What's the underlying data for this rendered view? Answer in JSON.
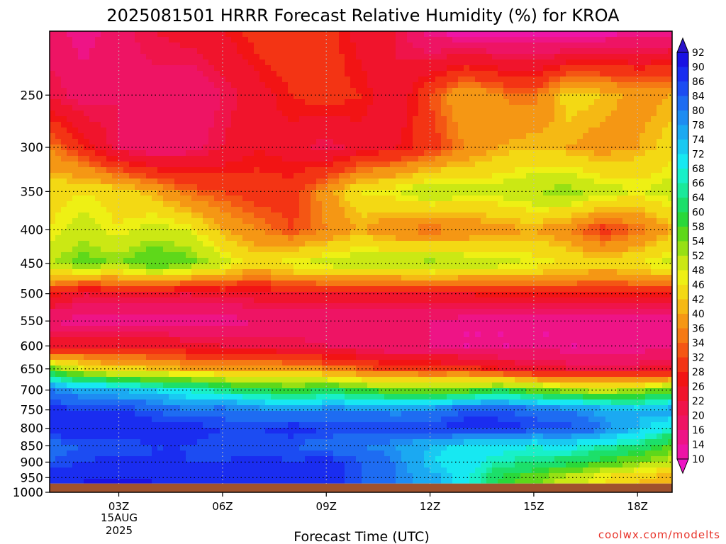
{
  "chart_data": {
    "type": "heatmap",
    "title": "2025081501 HRRR Forecast Relative Humidity (%) for KROA",
    "xlabel": "Forecast Time (UTC)",
    "ylabel": "",
    "credit": "coolwx.com/modelts",
    "x_ticks": [
      "03Z",
      "06Z",
      "09Z",
      "12Z",
      "15Z",
      "18Z"
    ],
    "x_tick_hours": [
      3,
      6,
      9,
      12,
      15,
      18
    ],
    "date_label": [
      "15AUG",
      "2025"
    ],
    "xlim": [
      1,
      19
    ],
    "y_ticks": [
      "250",
      "300",
      "350",
      "400",
      "450",
      "500",
      "550",
      "600",
      "650",
      "700",
      "750",
      "800",
      "850",
      "900",
      "950",
      "1000"
    ],
    "y_tick_values": [
      250,
      300,
      350,
      400,
      450,
      500,
      550,
      600,
      650,
      700,
      750,
      800,
      850,
      900,
      950,
      1000
    ],
    "y_scale": "log-pressure",
    "ylim": [
      200,
      1000
    ],
    "surface_pressure_hpa": 970,
    "grid": true,
    "colorbar_levels": [
      "92",
      "90",
      "86",
      "84",
      "80",
      "78",
      "74",
      "72",
      "68",
      "66",
      "64",
      "60",
      "58",
      "54",
      "52",
      "48",
      "46",
      "42",
      "40",
      "36",
      "34",
      "32",
      "28",
      "26",
      "22",
      "20",
      "16",
      "14",
      "10"
    ],
    "colorbar_colors": [
      "#2a13c9",
      "#1a12e3",
      "#1a2df0",
      "#1c4cf2",
      "#1e6cf2",
      "#1e8cf2",
      "#1ba9f2",
      "#19c9f2",
      "#17e8f2",
      "#18f0c8",
      "#1ae99a",
      "#1cdf6a",
      "#2ad83a",
      "#5ed81a",
      "#97e014",
      "#cbe814",
      "#eef014",
      "#f3d914",
      "#f5b914",
      "#f59714",
      "#f57a14",
      "#f45614",
      "#f33414",
      "#f21414",
      "#f0142c",
      "#ef144a",
      "#ee1464",
      "#ee1486",
      "#ee14a6",
      "#ed14c4"
    ],
    "x_hours": [
      1,
      2,
      3,
      4,
      5,
      6,
      7,
      8,
      9,
      10,
      11,
      12,
      13,
      14,
      15,
      16,
      17,
      18,
      19
    ],
    "y_levels": [
      200,
      250,
      300,
      350,
      400,
      450,
      500,
      550,
      600,
      650,
      700,
      750,
      800,
      850,
      900,
      950
    ],
    "values": [
      [
        18,
        14,
        18,
        22,
        24,
        26,
        30,
        32,
        30,
        24,
        22,
        14,
        12,
        12,
        11,
        10,
        12,
        14,
        14
      ],
      [
        22,
        18,
        20,
        18,
        16,
        20,
        24,
        28,
        30,
        28,
        22,
        32,
        40,
        36,
        34,
        44,
        42,
        38,
        40
      ],
      [
        36,
        28,
        20,
        16,
        18,
        22,
        26,
        24,
        20,
        24,
        26,
        30,
        36,
        40,
        42,
        40,
        38,
        40,
        44
      ],
      [
        44,
        46,
        44,
        40,
        34,
        32,
        30,
        30,
        38,
        46,
        48,
        52,
        50,
        50,
        52,
        54,
        50,
        48,
        50
      ],
      [
        46,
        50,
        46,
        50,
        48,
        40,
        36,
        32,
        36,
        40,
        36,
        34,
        36,
        38,
        40,
        36,
        30,
        34,
        40
      ],
      [
        52,
        56,
        54,
        58,
        56,
        50,
        44,
        48,
        50,
        52,
        52,
        54,
        52,
        50,
        48,
        46,
        44,
        46,
        50
      ],
      [
        28,
        22,
        24,
        24,
        22,
        24,
        24,
        26,
        26,
        26,
        26,
        26,
        26,
        28,
        28,
        28,
        28,
        28,
        28
      ],
      [
        16,
        14,
        14,
        14,
        14,
        14,
        16,
        16,
        16,
        16,
        16,
        16,
        14,
        14,
        14,
        14,
        14,
        14,
        14
      ],
      [
        24,
        26,
        26,
        26,
        24,
        22,
        22,
        22,
        20,
        18,
        16,
        16,
        14,
        14,
        14,
        14,
        14,
        14,
        14
      ],
      [
        56,
        46,
        44,
        42,
        40,
        40,
        40,
        38,
        36,
        34,
        30,
        30,
        30,
        26,
        24,
        22,
        22,
        22,
        24
      ],
      [
        80,
        76,
        74,
        72,
        68,
        64,
        60,
        58,
        60,
        58,
        56,
        54,
        56,
        60,
        56,
        52,
        50,
        52,
        56
      ],
      [
        88,
        86,
        86,
        84,
        80,
        82,
        80,
        78,
        80,
        80,
        78,
        80,
        84,
        84,
        82,
        80,
        76,
        74,
        76
      ],
      [
        88,
        90,
        90,
        88,
        88,
        86,
        86,
        88,
        86,
        86,
        86,
        86,
        88,
        88,
        86,
        86,
        80,
        74,
        68
      ],
      [
        82,
        84,
        84,
        86,
        86,
        84,
        84,
        84,
        82,
        80,
        78,
        74,
        70,
        70,
        68,
        70,
        66,
        64,
        56
      ],
      [
        84,
        86,
        88,
        86,
        86,
        86,
        88,
        86,
        88,
        84,
        80,
        72,
        70,
        66,
        64,
        62,
        58,
        54,
        50
      ],
      [
        88,
        90,
        90,
        90,
        88,
        88,
        88,
        88,
        88,
        84,
        80,
        76,
        70,
        60,
        56,
        50,
        46,
        42,
        40
      ]
    ]
  }
}
